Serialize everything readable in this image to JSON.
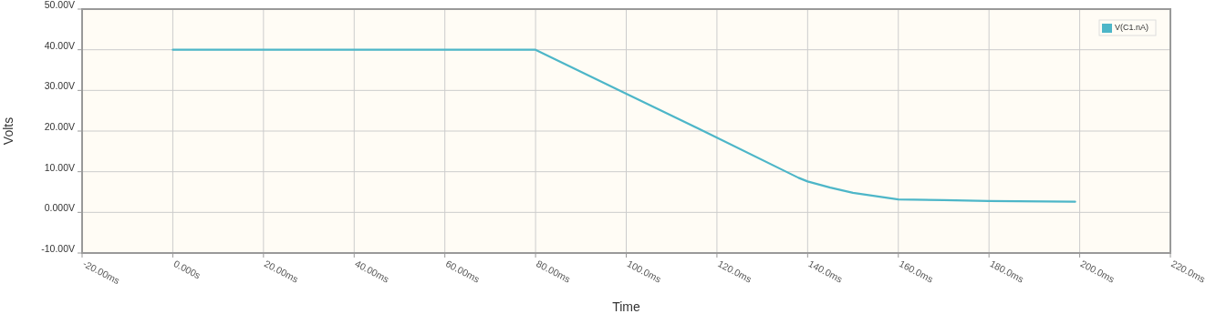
{
  "chart_data": {
    "type": "line",
    "xlabel": "Time",
    "ylabel": "Volts",
    "xlim": [
      -20,
      220
    ],
    "ylim": [
      -10,
      50
    ],
    "xticks": [
      {
        "value": -20,
        "label": "-20.00ms"
      },
      {
        "value": 0,
        "label": "0.000s"
      },
      {
        "value": 20,
        "label": "20.00ms"
      },
      {
        "value": 40,
        "label": "40.00ms"
      },
      {
        "value": 60,
        "label": "60.00ms"
      },
      {
        "value": 80,
        "label": "80.00ms"
      },
      {
        "value": 100,
        "label": "100.0ms"
      },
      {
        "value": 120,
        "label": "120.0ms"
      },
      {
        "value": 140,
        "label": "140.0ms"
      },
      {
        "value": 160,
        "label": "160.0ms"
      },
      {
        "value": 180,
        "label": "180.0ms"
      },
      {
        "value": 200,
        "label": "200.0ms"
      },
      {
        "value": 220,
        "label": "220.0ms"
      }
    ],
    "yticks": [
      {
        "value": -10,
        "label": "-10.00V"
      },
      {
        "value": 0,
        "label": "0.000V"
      },
      {
        "value": 10,
        "label": "10.00V"
      },
      {
        "value": 20,
        "label": "20.00V"
      },
      {
        "value": 30,
        "label": "30.00V"
      },
      {
        "value": 40,
        "label": "40.00V"
      },
      {
        "value": 50,
        "label": "50.00V"
      }
    ],
    "grid": true,
    "legend": "top right",
    "marker": "none",
    "line_style": "solid",
    "series": [
      {
        "name": "V(C1.nA)",
        "color": "#4db6c8",
        "x": [
          0,
          80,
          100,
          120,
          138,
          140,
          145,
          150,
          160,
          170,
          180,
          199
        ],
        "values": [
          40,
          40,
          29.2,
          18.4,
          8.5,
          7.6,
          6.1,
          4.8,
          3.2,
          3.0,
          2.8,
          2.6
        ]
      }
    ]
  }
}
